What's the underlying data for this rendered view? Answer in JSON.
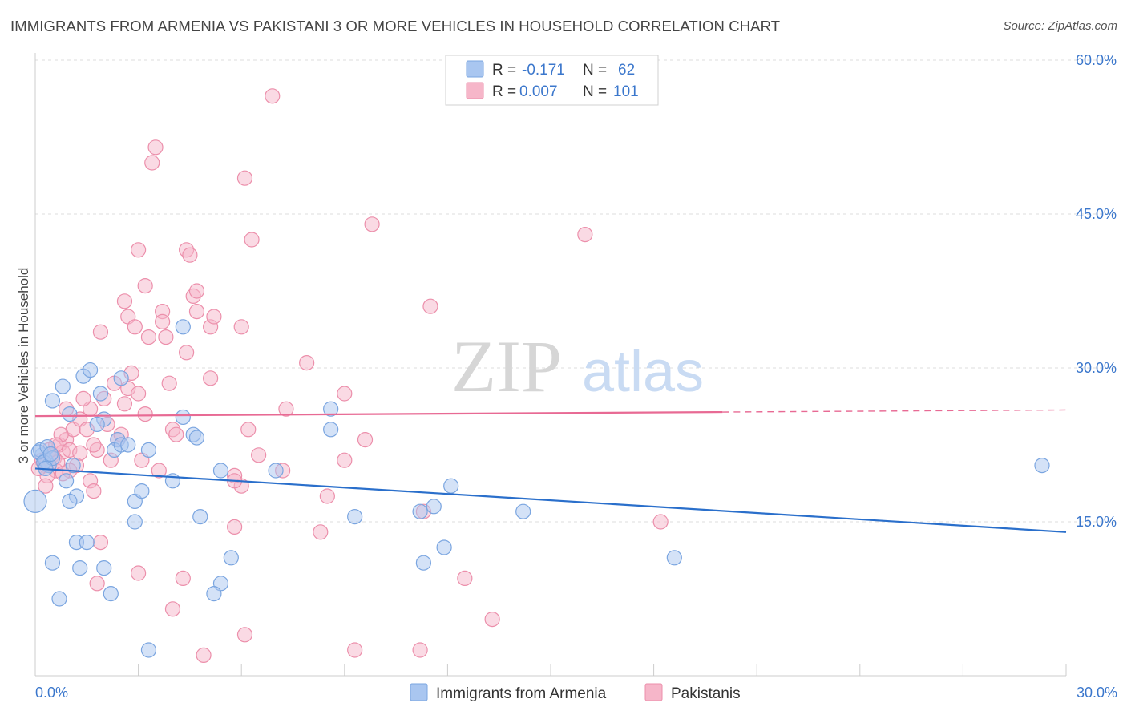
{
  "title": "IMMIGRANTS FROM ARMENIA VS PAKISTANI 3 OR MORE VEHICLES IN HOUSEHOLD CORRELATION CHART",
  "source": "Source: ZipAtlas.com",
  "watermark": {
    "zip": "ZIP",
    "atlas": "atlas"
  },
  "colors": {
    "blue_fill": "#a9c6f0",
    "blue_stroke": "#7aa5e0",
    "blue_line": "#2a6fcb",
    "pink_fill": "#f6b6c9",
    "pink_stroke": "#ec8fab",
    "pink_line": "#e86a94",
    "axis_label": "#3b77cc",
    "grid": "#dddddd"
  },
  "stats_legend": [
    {
      "r_label": "R =",
      "r_value": "-0.171",
      "n_label": "N =",
      "n_value": "62"
    },
    {
      "r_label": "R =",
      "r_value": "0.007",
      "n_label": "N =",
      "n_value": "101"
    }
  ],
  "chart_data": {
    "type": "scatter",
    "title": "IMMIGRANTS FROM ARMENIA VS PAKISTANI 3 OR MORE VEHICLES IN HOUSEHOLD CORRELATION CHART",
    "xlabel": "",
    "ylabel": "3 or more Vehicles in Household",
    "xlim": [
      0,
      30
    ],
    "ylim": [
      0,
      60
    ],
    "x_tick_labels": [
      "0.0%",
      "30.0%"
    ],
    "y_tick_values": [
      15,
      30,
      45,
      60
    ],
    "y_tick_labels": [
      "15.0%",
      "30.0%",
      "45.0%",
      "60.0%"
    ],
    "grid": true,
    "legend_position": "bottom",
    "series": [
      {
        "name": "Immigrants from Armenia",
        "color": "blue",
        "r": -0.171,
        "n": 62,
        "trend": {
          "x0": 0,
          "y0": 20.2,
          "x1": 30,
          "y1": 14.0,
          "dashed_from": null
        },
        "points": [
          {
            "x": 0.2,
            "y": 21.5
          },
          {
            "x": 0.3,
            "y": 21.0
          },
          {
            "x": 0.15,
            "y": 22.0
          },
          {
            "x": 0.4,
            "y": 20.5
          },
          {
            "x": 0.1,
            "y": 21.8
          },
          {
            "x": 0.25,
            "y": 20.8
          },
          {
            "x": 0.35,
            "y": 22.3
          },
          {
            "x": 0.5,
            "y": 21.2
          },
          {
            "x": 0.3,
            "y": 20.2
          },
          {
            "x": 0.45,
            "y": 21.6
          },
          {
            "x": 0.5,
            "y": 26.8
          },
          {
            "x": 0.8,
            "y": 28.2
          },
          {
            "x": 1.0,
            "y": 25.5
          },
          {
            "x": 1.4,
            "y": 29.2
          },
          {
            "x": 1.6,
            "y": 29.8
          },
          {
            "x": 1.9,
            "y": 27.5
          },
          {
            "x": 2.0,
            "y": 25.0
          },
          {
            "x": 2.5,
            "y": 29.0
          },
          {
            "x": 1.1,
            "y": 20.5
          },
          {
            "x": 0.9,
            "y": 19.0
          },
          {
            "x": 1.2,
            "y": 17.5
          },
          {
            "x": 1.0,
            "y": 17.0
          },
          {
            "x": 1.8,
            "y": 24.5
          },
          {
            "x": 2.4,
            "y": 23.0
          },
          {
            "x": 2.3,
            "y": 22.0
          },
          {
            "x": 2.5,
            "y": 22.5
          },
          {
            "x": 2.9,
            "y": 17.0
          },
          {
            "x": 3.1,
            "y": 18.0
          },
          {
            "x": 2.9,
            "y": 15.0
          },
          {
            "x": 4.3,
            "y": 34.0
          },
          {
            "x": 4.3,
            "y": 25.2
          },
          {
            "x": 4.6,
            "y": 23.5
          },
          {
            "x": 4.7,
            "y": 23.2
          },
          {
            "x": 4.0,
            "y": 19.0
          },
          {
            "x": 4.8,
            "y": 15.5
          },
          {
            "x": 5.4,
            "y": 20.0
          },
          {
            "x": 5.7,
            "y": 11.5
          },
          {
            "x": 5.4,
            "y": 9.0
          },
          {
            "x": 5.2,
            "y": 8.0
          },
          {
            "x": 7.0,
            "y": 20.0
          },
          {
            "x": 8.6,
            "y": 26.0
          },
          {
            "x": 8.6,
            "y": 24.0
          },
          {
            "x": 9.3,
            "y": 15.5
          },
          {
            "x": 11.6,
            "y": 16.5
          },
          {
            "x": 11.2,
            "y": 16.0
          },
          {
            "x": 12.1,
            "y": 18.5
          },
          {
            "x": 11.9,
            "y": 12.5
          },
          {
            "x": 11.3,
            "y": 11.0
          },
          {
            "x": 14.2,
            "y": 16.0
          },
          {
            "x": 18.6,
            "y": 11.5
          },
          {
            "x": 29.3,
            "y": 20.5
          },
          {
            "x": 1.2,
            "y": 13.0
          },
          {
            "x": 1.5,
            "y": 13.0
          },
          {
            "x": 0.5,
            "y": 11.0
          },
          {
            "x": 1.3,
            "y": 10.5
          },
          {
            "x": 2.0,
            "y": 10.5
          },
          {
            "x": 0.7,
            "y": 7.5
          },
          {
            "x": 2.2,
            "y": 8.0
          },
          {
            "x": 3.3,
            "y": 2.5
          },
          {
            "x": 0.0,
            "y": 17.0
          },
          {
            "x": 3.3,
            "y": 22.0
          },
          {
            "x": 2.7,
            "y": 22.5
          }
        ]
      },
      {
        "name": "Pakistanis",
        "color": "pink",
        "r": 0.007,
        "n": 101,
        "trend": {
          "x0": 0,
          "y0": 25.3,
          "x1": 30,
          "y1": 25.9,
          "dashed_from": 20.0
        },
        "points": [
          {
            "x": 0.2,
            "y": 21.0
          },
          {
            "x": 0.3,
            "y": 20.5
          },
          {
            "x": 0.4,
            "y": 22.0
          },
          {
            "x": 0.5,
            "y": 21.5
          },
          {
            "x": 0.6,
            "y": 20.0
          },
          {
            "x": 0.7,
            "y": 22.5
          },
          {
            "x": 0.8,
            "y": 21.8
          },
          {
            "x": 0.9,
            "y": 23.0
          },
          {
            "x": 1.0,
            "y": 22.0
          },
          {
            "x": 1.1,
            "y": 24.0
          },
          {
            "x": 0.35,
            "y": 19.5
          },
          {
            "x": 0.55,
            "y": 21.2
          },
          {
            "x": 0.65,
            "y": 20.8
          },
          {
            "x": 0.75,
            "y": 23.5
          },
          {
            "x": 1.2,
            "y": 20.5
          },
          {
            "x": 1.3,
            "y": 25.0
          },
          {
            "x": 1.5,
            "y": 24.0
          },
          {
            "x": 1.6,
            "y": 26.0
          },
          {
            "x": 1.8,
            "y": 22.0
          },
          {
            "x": 2.0,
            "y": 27.0
          },
          {
            "x": 2.1,
            "y": 24.5
          },
          {
            "x": 2.2,
            "y": 21.0
          },
          {
            "x": 2.4,
            "y": 23.0
          },
          {
            "x": 2.6,
            "y": 26.5
          },
          {
            "x": 2.7,
            "y": 28.0
          },
          {
            "x": 2.8,
            "y": 29.5
          },
          {
            "x": 3.0,
            "y": 27.5
          },
          {
            "x": 3.1,
            "y": 21.0
          },
          {
            "x": 3.2,
            "y": 25.5
          },
          {
            "x": 1.9,
            "y": 33.5
          },
          {
            "x": 2.6,
            "y": 36.5
          },
          {
            "x": 2.7,
            "y": 35.0
          },
          {
            "x": 2.9,
            "y": 34.0
          },
          {
            "x": 3.0,
            "y": 41.5
          },
          {
            "x": 3.2,
            "y": 38.0
          },
          {
            "x": 3.3,
            "y": 33.0
          },
          {
            "x": 3.5,
            "y": 51.5
          },
          {
            "x": 3.4,
            "y": 50.0
          },
          {
            "x": 3.7,
            "y": 35.5
          },
          {
            "x": 3.7,
            "y": 34.5
          },
          {
            "x": 3.8,
            "y": 33.0
          },
          {
            "x": 3.9,
            "y": 28.5
          },
          {
            "x": 4.0,
            "y": 24.0
          },
          {
            "x": 4.4,
            "y": 41.5
          },
          {
            "x": 4.5,
            "y": 41.0
          },
          {
            "x": 4.6,
            "y": 37.0
          },
          {
            "x": 4.7,
            "y": 37.5
          },
          {
            "x": 4.7,
            "y": 35.5
          },
          {
            "x": 4.4,
            "y": 31.5
          },
          {
            "x": 5.1,
            "y": 34.0
          },
          {
            "x": 5.2,
            "y": 35.0
          },
          {
            "x": 5.1,
            "y": 29.0
          },
          {
            "x": 6.0,
            "y": 34.0
          },
          {
            "x": 6.1,
            "y": 48.5
          },
          {
            "x": 6.3,
            "y": 42.5
          },
          {
            "x": 6.9,
            "y": 56.5
          },
          {
            "x": 6.2,
            "y": 24.0
          },
          {
            "x": 6.5,
            "y": 21.5
          },
          {
            "x": 6.0,
            "y": 18.5
          },
          {
            "x": 5.8,
            "y": 19.5
          },
          {
            "x": 7.3,
            "y": 26.0
          },
          {
            "x": 7.2,
            "y": 20.0
          },
          {
            "x": 7.9,
            "y": 30.5
          },
          {
            "x": 8.5,
            "y": 17.5
          },
          {
            "x": 8.3,
            "y": 14.0
          },
          {
            "x": 9.0,
            "y": 27.5
          },
          {
            "x": 9.0,
            "y": 21.0
          },
          {
            "x": 9.6,
            "y": 23.0
          },
          {
            "x": 9.8,
            "y": 44.0
          },
          {
            "x": 11.5,
            "y": 36.0
          },
          {
            "x": 11.3,
            "y": 16.0
          },
          {
            "x": 11.2,
            "y": 2.5
          },
          {
            "x": 12.5,
            "y": 9.5
          },
          {
            "x": 13.3,
            "y": 5.5
          },
          {
            "x": 16.0,
            "y": 43.0
          },
          {
            "x": 18.2,
            "y": 15.0
          },
          {
            "x": 5.8,
            "y": 14.5
          },
          {
            "x": 6.1,
            "y": 4.0
          },
          {
            "x": 4.9,
            "y": 2.0
          },
          {
            "x": 4.0,
            "y": 6.5
          },
          {
            "x": 4.3,
            "y": 9.5
          },
          {
            "x": 3.0,
            "y": 10.0
          },
          {
            "x": 1.8,
            "y": 9.0
          },
          {
            "x": 1.9,
            "y": 13.0
          },
          {
            "x": 1.6,
            "y": 19.0
          },
          {
            "x": 1.7,
            "y": 18.0
          },
          {
            "x": 2.5,
            "y": 23.5
          },
          {
            "x": 3.6,
            "y": 20.0
          },
          {
            "x": 4.1,
            "y": 23.5
          },
          {
            "x": 2.3,
            "y": 28.5
          },
          {
            "x": 0.9,
            "y": 26.0
          },
          {
            "x": 1.4,
            "y": 27.0
          },
          {
            "x": 0.3,
            "y": 18.5
          },
          {
            "x": 9.3,
            "y": 2.5
          },
          {
            "x": 5.8,
            "y": 19.0
          },
          {
            "x": 1.0,
            "y": 20.0
          },
          {
            "x": 0.6,
            "y": 22.5
          },
          {
            "x": 1.7,
            "y": 22.5
          },
          {
            "x": 0.1,
            "y": 20.2
          },
          {
            "x": 0.8,
            "y": 19.7
          },
          {
            "x": 1.3,
            "y": 21.7
          }
        ]
      }
    ]
  }
}
